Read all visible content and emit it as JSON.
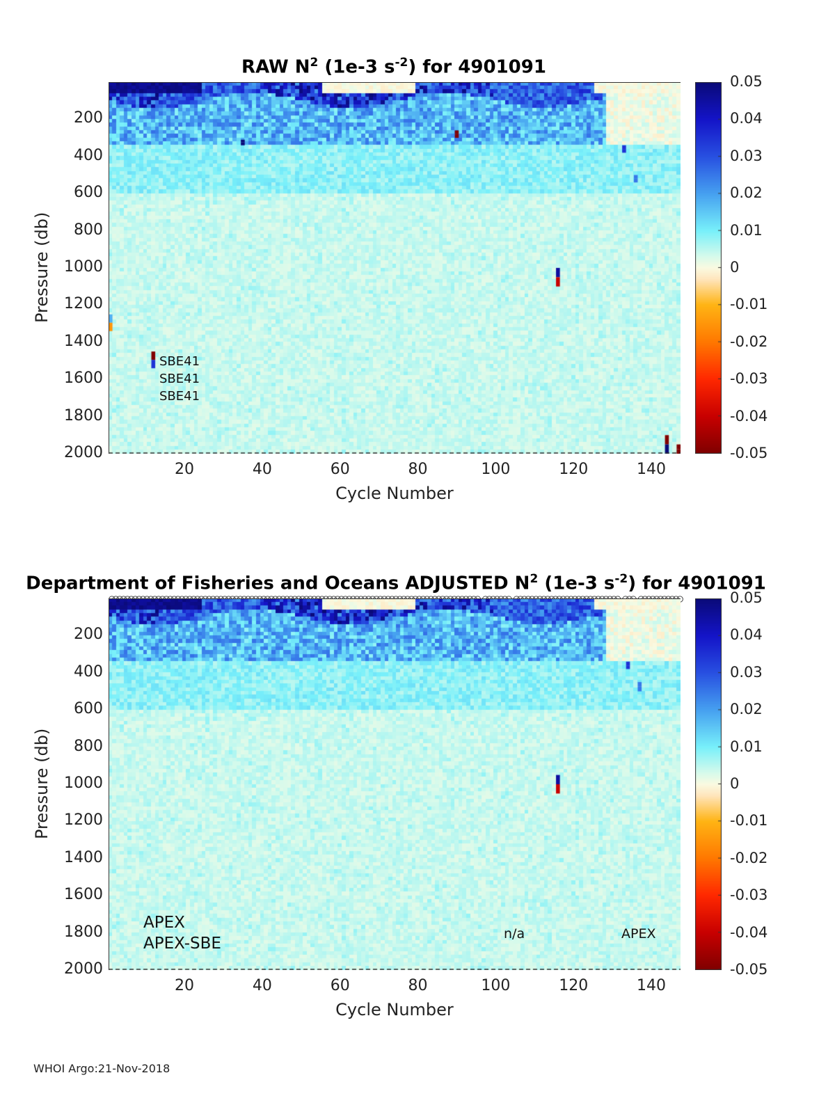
{
  "footer": "WHOI Argo:21-Nov-2018",
  "colors": {
    "background_field": "#e2fbe2",
    "axis": "#333333"
  },
  "chart_data": [
    {
      "type": "heatmap",
      "id": "raw",
      "title_pre": "RAW N",
      "title_sup1": "2",
      "title_mid": " (1e-3 s",
      "title_sup2": "-2",
      "title_post": ") for 4901091",
      "xlabel": "Cycle Number",
      "ylabel": "Pressure (db)",
      "xlim": [
        1,
        147
      ],
      "ylim": [
        0,
        2000
      ],
      "y_reversed": true,
      "xticks": [
        20,
        40,
        60,
        80,
        100,
        120,
        140
      ],
      "xtick_labels": [
        "20",
        "40",
        "60",
        "80",
        "100",
        "120",
        "140"
      ],
      "yticks": [
        200,
        400,
        600,
        800,
        1000,
        1200,
        1400,
        1600,
        1800,
        2000
      ],
      "ytick_labels": [
        "200",
        "400",
        "600",
        "800",
        "1000",
        "1200",
        "1400",
        "1600",
        "1800",
        "2000"
      ],
      "clim": [
        -0.05,
        0.05
      ],
      "colorbar_ticks": [
        0.05,
        0.04,
        0.03,
        0.02,
        0.01,
        0,
        -0.01,
        -0.02,
        -0.03,
        -0.04,
        -0.05
      ],
      "colorbar_labels": [
        "0.05",
        "0.04",
        "0.03",
        "0.02",
        "0.01",
        "0",
        "-0.01",
        "-0.02",
        "-0.03",
        "-0.04",
        "-0.05"
      ],
      "annotations": [
        "SBE41",
        "SBE41",
        "SBE41"
      ],
      "spikes": [
        {
          "cycle": 116,
          "p_top": 1000,
          "p_bottom": 1100,
          "value_top": 0.045,
          "value_bottom": -0.04
        },
        {
          "cycle": 1,
          "p_top": 1250,
          "p_bottom": 1340,
          "value_top": 0.018,
          "value_bottom": -0.015
        },
        {
          "cycle": 12,
          "p_top": 1450,
          "p_bottom": 1540,
          "value_top": -0.05,
          "value_bottom": 0.035
        },
        {
          "cycle": 144,
          "p_top": 1900,
          "p_bottom": 2000,
          "value_top": -0.05,
          "value_bottom": 0.05
        },
        {
          "cycle": 147,
          "p_top": 1950,
          "p_bottom": 2000,
          "value_top": -0.05,
          "value_bottom": -0.05
        },
        {
          "cycle": 35,
          "p_top": 310,
          "p_bottom": 340,
          "value_top": 0.05,
          "value_bottom": 0.05
        },
        {
          "cycle": 90,
          "p_top": 260,
          "p_bottom": 300,
          "value_top": -0.05,
          "value_bottom": -0.05
        },
        {
          "cycle": 133,
          "p_top": 340,
          "p_bottom": 380,
          "value_top": 0.035,
          "value_bottom": 0.035
        },
        {
          "cycle": 136,
          "p_top": 500,
          "p_bottom": 540,
          "value_top": 0.025,
          "value_bottom": 0.025
        }
      ]
    },
    {
      "type": "heatmap",
      "id": "adjusted",
      "title_pre": "Department of Fisheries and Oceans  ADJUSTED N",
      "title_sup1": "2",
      "title_mid": " (1e-3 s",
      "title_sup2": "-2",
      "title_post": ") for 4901091",
      "xlabel": "Cycle Number",
      "ylabel": "Pressure (db)",
      "xlim": [
        1,
        147
      ],
      "ylim": [
        0,
        2000
      ],
      "y_reversed": true,
      "xticks": [
        20,
        40,
        60,
        80,
        100,
        120,
        140
      ],
      "xtick_labels": [
        "20",
        "40",
        "60",
        "80",
        "100",
        "120",
        "140"
      ],
      "yticks": [
        200,
        400,
        600,
        800,
        1000,
        1200,
        1400,
        1600,
        1800,
        2000
      ],
      "ytick_labels": [
        "200",
        "400",
        "600",
        "800",
        "1000",
        "1200",
        "1400",
        "1600",
        "1800",
        "2000"
      ],
      "clim": [
        -0.05,
        0.05
      ],
      "colorbar_ticks": [
        0.05,
        0.04,
        0.03,
        0.02,
        0.01,
        0,
        -0.01,
        -0.02,
        -0.03,
        -0.04,
        -0.05
      ],
      "colorbar_labels": [
        "0.05",
        "0.04",
        "0.03",
        "0.02",
        "0.01",
        "0",
        "-0.01",
        "-0.02",
        "-0.03",
        "-0.04",
        "-0.05"
      ],
      "annotations": [
        "APEX",
        "APEX-SBE",
        "n/a",
        "APEX"
      ],
      "qc_markers": "circles along top axis for each cycle",
      "spikes": [
        {
          "cycle": 116,
          "p_top": 950,
          "p_bottom": 1050,
          "value_top": 0.045,
          "value_bottom": -0.04
        },
        {
          "cycle": 134,
          "p_top": 340,
          "p_bottom": 380,
          "value_top": 0.035,
          "value_bottom": 0.035
        },
        {
          "cycle": 137,
          "p_top": 450,
          "p_bottom": 500,
          "value_top": 0.025,
          "value_bottom": 0.025
        }
      ]
    }
  ]
}
